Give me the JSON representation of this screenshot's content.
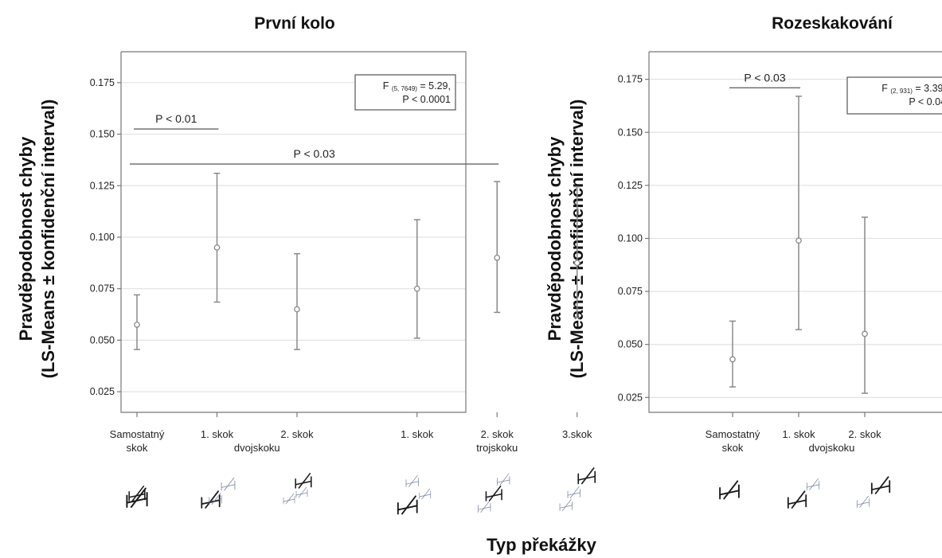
{
  "figure": {
    "x_title": "Typ překážky"
  },
  "chart_data": [
    {
      "type": "scatter",
      "title": "První kolo",
      "ylabel_line1": "Pravděpodobnost chyby",
      "ylabel_line2": "(LS-Means ± konfidenční interval)",
      "ylim": [
        0.015,
        0.19
      ],
      "yticks": [
        0.025,
        0.05,
        0.075,
        0.1,
        0.125,
        0.15,
        0.175
      ],
      "ytick_labels": [
        "0.025",
        "0.050",
        "0.075",
        "0.100",
        "0.125",
        "0.150",
        "0.175"
      ],
      "grid": true,
      "categories": [
        {
          "line1": "Samostatný",
          "line2": "skok",
          "icon": "single-obstacle-icon"
        },
        {
          "line1": "1. skok",
          "line2": "",
          "icon": "double-combination-first-icon"
        },
        {
          "line1": "2. skok",
          "line2": "",
          "icon": "double-combination-second-icon"
        },
        {
          "line1": "1. skok",
          "line2": "",
          "icon": "triple-combination-first-icon"
        },
        {
          "line1": "2. skok",
          "line2": "trojskoku",
          "icon": "triple-combination-second-icon"
        },
        {
          "line1": "3.skok",
          "line2": "",
          "icon": "triple-combination-third-icon"
        }
      ],
      "group_labels": [
        {
          "text": "dvojskoku",
          "between": [
            1,
            2
          ]
        }
      ],
      "x_positions": [
        1,
        2,
        3,
        4.5,
        5.5,
        6.5
      ],
      "points": [
        {
          "mean": 0.0575,
          "lower": 0.0455,
          "upper": 0.072
        },
        {
          "mean": 0.095,
          "lower": 0.0685,
          "upper": 0.131
        },
        {
          "mean": 0.065,
          "lower": 0.0455,
          "upper": 0.092
        },
        {
          "mean": 0.075,
          "lower": 0.051,
          "upper": 0.1085
        },
        {
          "mean": 0.09,
          "lower": 0.0635,
          "upper": 0.127
        },
        {
          "mean": 0.0875,
          "lower": 0.061,
          "upper": 0.1245
        }
      ],
      "significance": [
        {
          "text": "P < 0.01",
          "from": 1,
          "to": 2,
          "y": 0.1525
        },
        {
          "text": "P < 0.03",
          "from": 1,
          "to": 5.5,
          "y": 0.1355
        }
      ],
      "stat_box": {
        "prefix": "F",
        "subscript": "(5, 7649)",
        "rest": "= 5.29,",
        "line2": "P < 0.0001"
      }
    },
    {
      "type": "scatter",
      "title": "Rozeskakování",
      "ylabel_line1": "Pravděpodobnost chyby",
      "ylabel_line2": "(LS-Means ± konfidenční interval)",
      "ylim": [
        0.018,
        0.188
      ],
      "yticks": [
        0.025,
        0.05,
        0.075,
        0.1,
        0.125,
        0.15,
        0.175
      ],
      "ytick_labels": [
        "0.025",
        "0.050",
        "0.075",
        "0.100",
        "0.125",
        "0.150",
        "0.175"
      ],
      "grid": true,
      "categories": [
        {
          "line1": "Samostatný",
          "line2": "skok",
          "icon": "single-obstacle-icon"
        },
        {
          "line1": "1. skok",
          "line2": "",
          "icon": "double-combination-first-icon"
        },
        {
          "line1": "2. skok",
          "line2": "",
          "icon": "double-combination-second-icon"
        }
      ],
      "group_labels": [
        {
          "text": "dvojskoku",
          "between": [
            1,
            2
          ]
        }
      ],
      "x_positions": [
        1,
        2,
        3
      ],
      "points": [
        {
          "mean": 0.043,
          "lower": 0.03,
          "upper": 0.061
        },
        {
          "mean": 0.099,
          "lower": 0.057,
          "upper": 0.167
        },
        {
          "mean": 0.055,
          "lower": 0.027,
          "upper": 0.11
        }
      ],
      "significance": [
        {
          "text": "P < 0.03",
          "from": 1,
          "to": 2,
          "y": 0.171
        }
      ],
      "stat_box": {
        "prefix": "F",
        "subscript": "(2, 931)",
        "rest": "= 3.39,",
        "line2": "P < 0.04"
      }
    }
  ]
}
